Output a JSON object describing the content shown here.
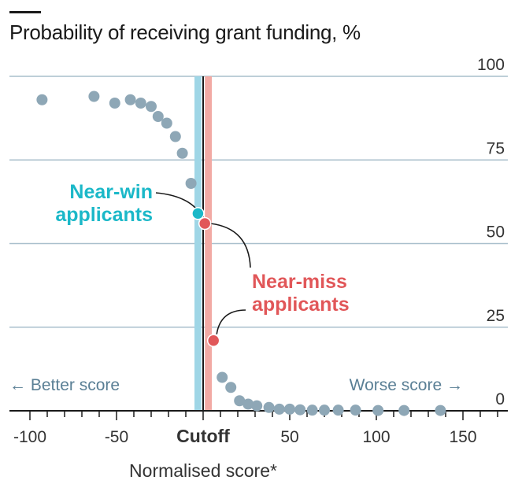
{
  "chart_data": {
    "type": "scatter",
    "title": "Probability of receiving grant funding, %",
    "xlabel": "Normalised score*",
    "ylabel": "",
    "xlim": [
      -110,
      175
    ],
    "ylim": [
      0,
      100
    ],
    "x_ticks": [
      {
        "value": -100,
        "label": "-100"
      },
      {
        "value": -50,
        "label": "-50"
      },
      {
        "value": 0,
        "label": "Cutoff"
      },
      {
        "value": 50,
        "label": "50"
      },
      {
        "value": 100,
        "label": "100"
      },
      {
        "value": 150,
        "label": "150"
      }
    ],
    "y_ticks": [
      0,
      25,
      50,
      75,
      100
    ],
    "y_tick_labels": [
      "0",
      "25",
      "50",
      "75",
      "100"
    ],
    "grid": true,
    "points": [
      {
        "x": -93,
        "y": 93
      },
      {
        "x": -63,
        "y": 94
      },
      {
        "x": -51,
        "y": 92
      },
      {
        "x": -42,
        "y": 93
      },
      {
        "x": -36,
        "y": 92
      },
      {
        "x": -30,
        "y": 91
      },
      {
        "x": -26,
        "y": 88
      },
      {
        "x": -21,
        "y": 86
      },
      {
        "x": -16,
        "y": 82
      },
      {
        "x": -12,
        "y": 77
      },
      {
        "x": -7,
        "y": 68
      },
      {
        "x": 11,
        "y": 10
      },
      {
        "x": 16,
        "y": 7
      },
      {
        "x": 21,
        "y": 3
      },
      {
        "x": 26,
        "y": 2
      },
      {
        "x": 31,
        "y": 1.5
      },
      {
        "x": 38,
        "y": 1
      },
      {
        "x": 44,
        "y": 0.5
      },
      {
        "x": 50,
        "y": 0.5
      },
      {
        "x": 56,
        "y": 0.3
      },
      {
        "x": 63,
        "y": 0.2
      },
      {
        "x": 70,
        "y": 0.2
      },
      {
        "x": 78,
        "y": 0.2
      },
      {
        "x": 88,
        "y": 0.2
      },
      {
        "x": 101,
        "y": 0.1
      },
      {
        "x": 116,
        "y": 0.1
      },
      {
        "x": 137,
        "y": 0.1
      }
    ],
    "near_win": {
      "label_line1": "Near-win",
      "label_line2": "applicants",
      "x": -3,
      "y": 59,
      "band": [
        -5,
        -1
      ],
      "color": "#1bb8c8"
    },
    "near_miss": {
      "label_line1": "Near-miss",
      "label_line2": "applicants",
      "points": [
        {
          "x": 1,
          "y": 56
        },
        {
          "x": 6,
          "y": 21
        }
      ],
      "band": [
        1,
        5
      ],
      "color": "#e15759"
    },
    "cutoff_x": 0,
    "better_label": "← Better score",
    "worse_label": "Worse score →",
    "colors": {
      "dots": "#8ea7b6",
      "grid": "#a9bfcc",
      "near_win_band": "#9fd6e6",
      "near_miss_band": "#f2aaa4"
    }
  }
}
